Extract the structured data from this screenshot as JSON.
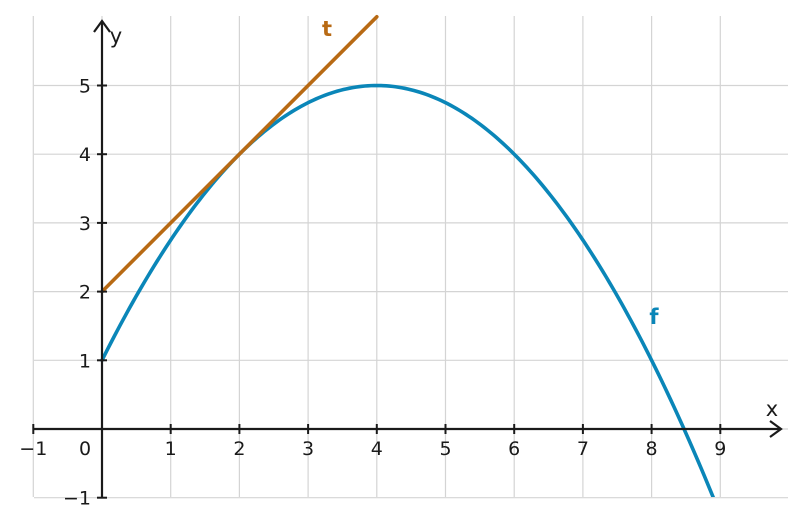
{
  "chart_data": {
    "type": "line",
    "xlabel": "x",
    "ylabel": "y",
    "xlim": [
      -1,
      10
    ],
    "ylim": [
      -1,
      6
    ],
    "grid": true,
    "x_ticks": [
      "−1",
      "0",
      "1",
      "2",
      "3",
      "4",
      "5",
      "6",
      "7",
      "8",
      "9"
    ],
    "y_ticks": [
      "−1",
      "1",
      "2",
      "3",
      "4",
      "5"
    ],
    "series": [
      {
        "name": "f",
        "color": "#0a86b8",
        "x": [
          0,
          1,
          2,
          3,
          4,
          5,
          6,
          7,
          8,
          8.5,
          8.9
        ],
        "y": [
          1,
          2.75,
          4,
          4.75,
          5,
          4.75,
          4,
          2.75,
          1,
          0,
          -0.96
        ]
      },
      {
        "name": "t",
        "color": "#b86a14",
        "x": [
          0,
          4
        ],
        "y": [
          2,
          6
        ]
      }
    ]
  }
}
